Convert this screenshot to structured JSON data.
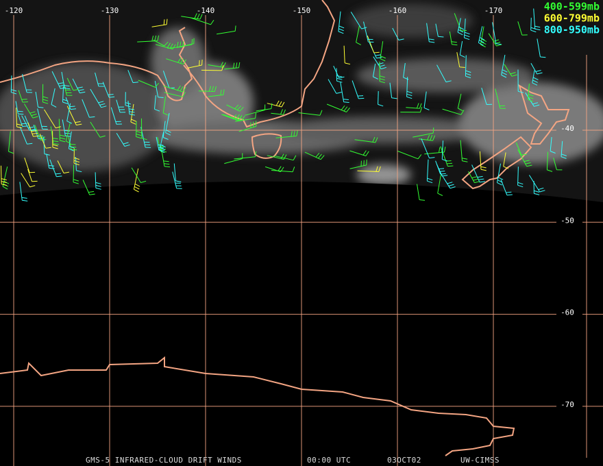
{
  "map": {
    "longitudes": [
      -120,
      -130,
      -140,
      -150,
      -160,
      -170
    ],
    "latitudes": [
      -40,
      -50,
      -60,
      -70
    ],
    "legend": [
      {
        "label": "400-599mb",
        "color": "#33ff33"
      },
      {
        "label": "600-799mb",
        "color": "#ffff33"
      },
      {
        "label": "800-950mb",
        "color": "#33ffff"
      }
    ],
    "footer": [
      "GMS-5 INFRARED-CLOUD DRIFT WINDS",
      "00:00 UTC",
      "03OCT02",
      "UW-CIMSS"
    ]
  }
}
